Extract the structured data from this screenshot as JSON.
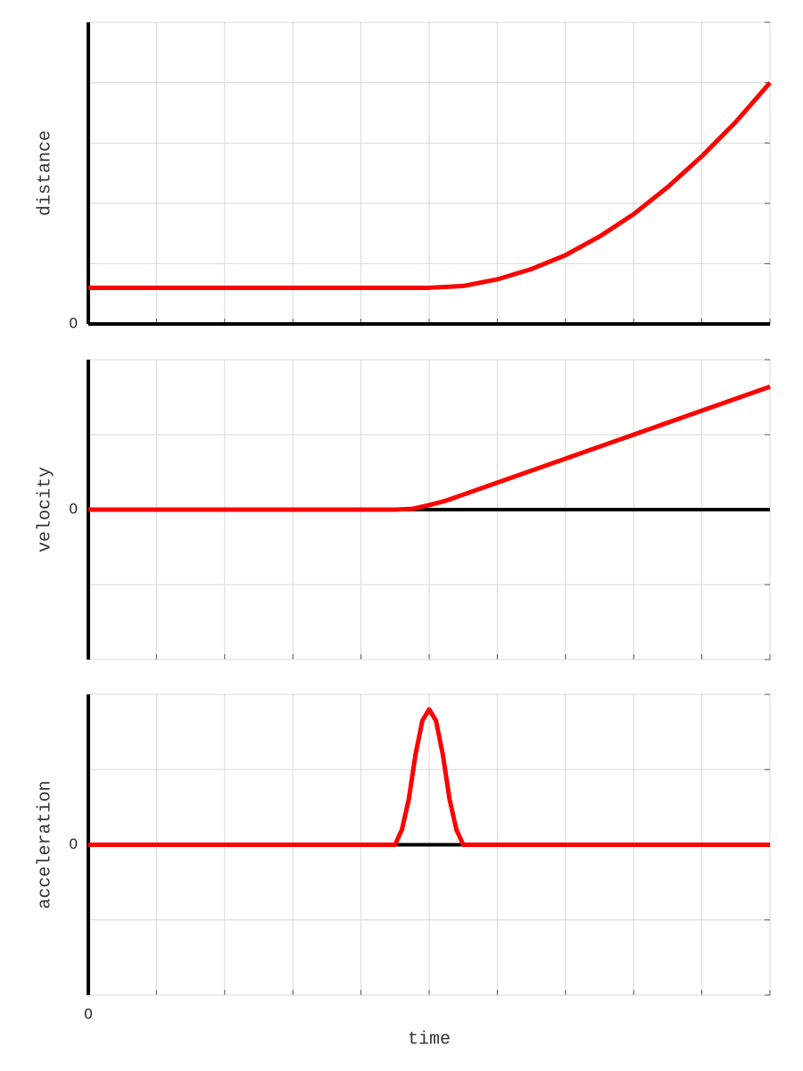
{
  "chart_data": [
    {
      "type": "line",
      "ylabel": "distance",
      "xlim": [
        0,
        10
      ],
      "ylim": [
        0,
        5
      ],
      "xgrid": [
        0,
        1,
        2,
        3,
        4,
        5,
        6,
        7,
        8,
        9,
        10
      ],
      "ygrid": [
        0,
        1,
        2,
        3,
        4,
        5
      ],
      "yticks": [
        0
      ],
      "grid": true,
      "x": [
        0,
        5,
        5.5,
        6,
        6.5,
        7,
        7.5,
        8,
        8.5,
        9,
        9.5,
        10
      ],
      "series": [
        {
          "color": "#ff0000",
          "values": [
            0.6,
            0.6,
            0.63,
            0.74,
            0.91,
            1.14,
            1.45,
            1.82,
            2.27,
            2.78,
            3.35,
            4
          ]
        }
      ]
    },
    {
      "type": "line",
      "ylabel": "velocity",
      "xlim": [
        0,
        10
      ],
      "ylim": [
        -2,
        2
      ],
      "xgrid": [
        0,
        1,
        2,
        3,
        4,
        5,
        6,
        7,
        8,
        9,
        10
      ],
      "ygrid": [
        -2,
        -1,
        0,
        1,
        2
      ],
      "yticks": [
        0
      ],
      "grid": true,
      "x": [
        0,
        4.5,
        4.75,
        5,
        5.25,
        5.5,
        6,
        8,
        10
      ],
      "series": [
        {
          "color": "#ff0000",
          "values": [
            0,
            0,
            0.01,
            0.06,
            0.12,
            0.2,
            0.36,
            1.0,
            1.64
          ]
        }
      ]
    },
    {
      "type": "line",
      "ylabel": "acceleration",
      "xlabel": "time",
      "xlim": [
        0,
        10
      ],
      "ylim": [
        -2,
        2
      ],
      "xgrid": [
        0,
        1,
        2,
        3,
        4,
        5,
        6,
        7,
        8,
        9,
        10
      ],
      "ygrid": [
        -2,
        -1,
        0,
        1,
        2
      ],
      "yticks": [
        0
      ],
      "xticks": [
        0
      ],
      "grid": true,
      "x": [
        0,
        4.5,
        4.6,
        4.7,
        4.8,
        4.9,
        5,
        5.1,
        5.2,
        5.3,
        5.4,
        5.5,
        10
      ],
      "series": [
        {
          "color": "#ff0000",
          "values": [
            0,
            0,
            0.2,
            0.6,
            1.2,
            1.65,
            1.8,
            1.65,
            1.2,
            0.6,
            0.2,
            0,
            0
          ]
        }
      ]
    }
  ]
}
